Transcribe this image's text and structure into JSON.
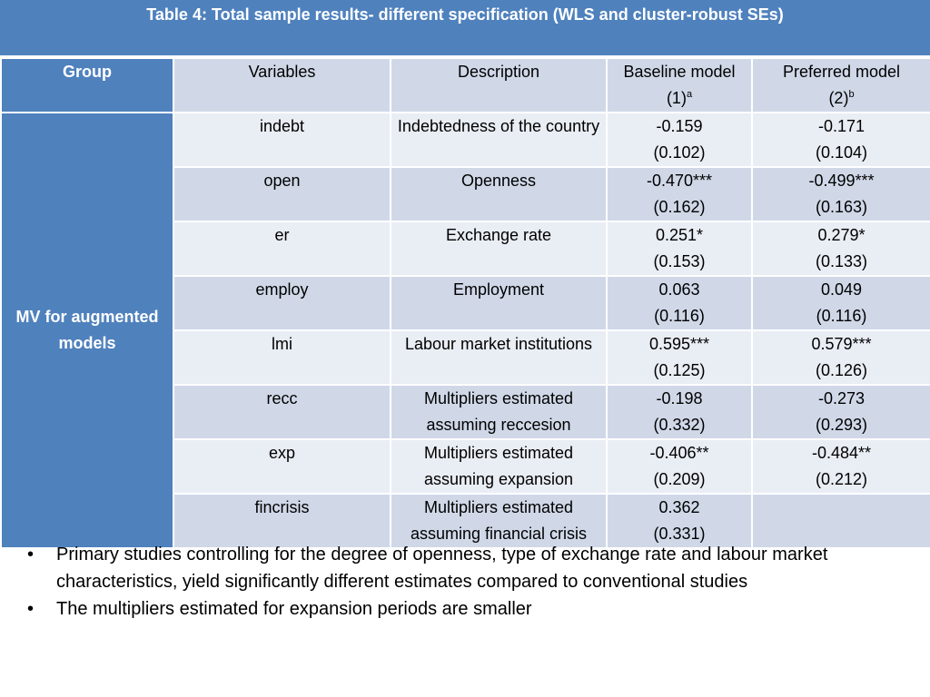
{
  "title": "Table 4: Total sample results- different specification (WLS and cluster-robust SEs)",
  "table": {
    "headers": {
      "group": "Group",
      "variables": "Variables",
      "description": "Description",
      "baseline_line1": "Baseline model",
      "baseline_line2": "(1)",
      "baseline_sup": "a",
      "preferred_line1": "Preferred model",
      "preferred_line2": "(2)",
      "preferred_sup": "b"
    },
    "group_label": "MV for augmented models",
    "rows": [
      {
        "variable": "indebt",
        "description": "Indebtedness of the country",
        "baseline_coef": "-0.159",
        "baseline_se": "(0.102)",
        "preferred_coef": "-0.171",
        "preferred_se": "(0.104)"
      },
      {
        "variable": "open",
        "description": "Openness",
        "baseline_coef": "-0.470***",
        "baseline_se": "(0.162)",
        "preferred_coef": "-0.499***",
        "preferred_se": "(0.163)"
      },
      {
        "variable": "er",
        "description": "Exchange rate",
        "baseline_coef": "0.251*",
        "baseline_se": "(0.153)",
        "preferred_coef": "0.279*",
        "preferred_se": "(0.133)"
      },
      {
        "variable": "employ",
        "description": "Employment",
        "baseline_coef": "0.063",
        "baseline_se": "(0.116)",
        "preferred_coef": "0.049",
        "preferred_se": "(0.116)"
      },
      {
        "variable": "lmi",
        "description": "Labour market institutions",
        "baseline_coef": "0.595***",
        "baseline_se": "(0.125)",
        "preferred_coef": "0.579***",
        "preferred_se": "(0.126)"
      },
      {
        "variable": "recc",
        "description": "Multipliers estimated assuming reccesion",
        "baseline_coef": "-0.198",
        "baseline_se": "(0.332)",
        "preferred_coef": "-0.273",
        "preferred_se": "(0.293)"
      },
      {
        "variable": "exp",
        "description": "Multipliers estimated assuming expansion",
        "baseline_coef": "-0.406**",
        "baseline_se": "(0.209)",
        "preferred_coef": "-0.484**",
        "preferred_se": "(0.212)"
      },
      {
        "variable": "fincrisis",
        "description": "Multipliers estimated assuming financial crisis",
        "baseline_coef": "0.362",
        "baseline_se": "(0.331)",
        "preferred_coef": "",
        "preferred_se": ""
      }
    ]
  },
  "bullets": [
    "Primary studies controlling for the degree of openness, type of exchange rate and labour market characteristics, yield significantly different estimates compared to conventional studies",
    "The multipliers estimated  for expansion periods are smaller"
  ],
  "bullet_symbol": "•",
  "colors": {
    "header_blue": "#4f81bd",
    "row_light": "#e9edf4",
    "row_dark": "#d0d8e8"
  }
}
